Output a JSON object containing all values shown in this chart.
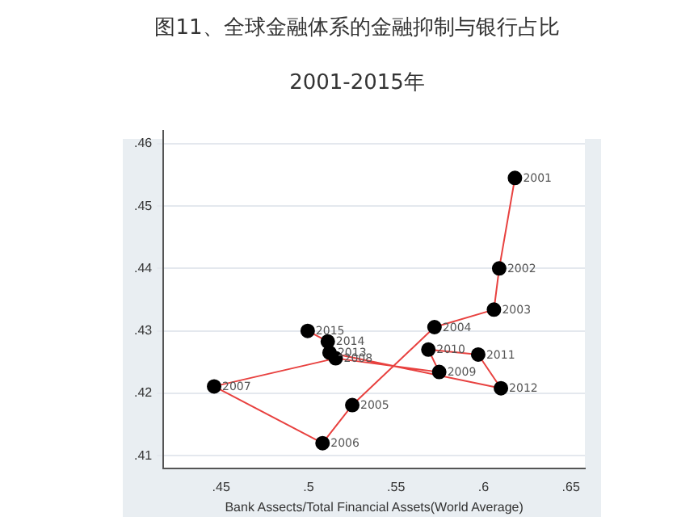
{
  "chart_data": {
    "type": "line",
    "title": "图11、全球金融体系的金融抑制与银行占比",
    "subtitle": "2001-2015年",
    "xlabel": "Bank Assects/Total Financial Assets(World Average)",
    "series": [
      {
        "color": "#e8413f",
        "x": [
          0.618,
          0.609,
          0.606,
          0.572,
          0.525,
          0.508,
          0.446,
          0.5155,
          0.5747,
          0.5685,
          0.597,
          0.61,
          0.512,
          0.511,
          0.4995
        ],
        "values": [
          0.4545,
          0.44,
          0.4334,
          0.4306,
          0.4181,
          0.412,
          0.4211,
          0.4256,
          0.4234,
          0.427,
          0.4262,
          0.4208,
          0.4265,
          0.4283,
          0.43
        ]
      }
    ],
    "annotations": [
      {
        "text": "2001",
        "x": 0.618,
        "y": 0.4545
      },
      {
        "text": "2002",
        "x": 0.609,
        "y": 0.44
      },
      {
        "text": "2003",
        "x": 0.606,
        "y": 0.4334
      },
      {
        "text": "2004",
        "x": 0.572,
        "y": 0.4306
      },
      {
        "text": "2005",
        "x": 0.525,
        "y": 0.4181
      },
      {
        "text": "2006",
        "x": 0.508,
        "y": 0.412
      },
      {
        "text": "2007",
        "x": 0.446,
        "y": 0.4211
      },
      {
        "text": "2008",
        "x": 0.5155,
        "y": 0.4256
      },
      {
        "text": "2009",
        "x": 0.5747,
        "y": 0.4234
      },
      {
        "text": "2010",
        "x": 0.5685,
        "y": 0.427
      },
      {
        "text": "2011",
        "x": 0.597,
        "y": 0.4262
      },
      {
        "text": "2012",
        "x": 0.61,
        "y": 0.4208
      },
      {
        "text": "2013",
        "x": 0.512,
        "y": 0.4265
      },
      {
        "text": "2014",
        "x": 0.511,
        "y": 0.4283
      },
      {
        "text": "2015",
        "x": 0.4995,
        "y": 0.43
      }
    ],
    "marker": "circle",
    "line_style": "solid",
    "xlim": [
      0.417,
      0.658
    ],
    "xticks": [
      {
        "value": 0.45,
        "label": ".45"
      },
      {
        "value": 0.5,
        "label": ".5"
      },
      {
        "value": 0.55,
        "label": ".55"
      },
      {
        "value": 0.6,
        "label": ".6"
      },
      {
        "value": 0.65,
        "label": ".65"
      }
    ],
    "ylim": [
      0.408,
      0.462
    ],
    "yticks": [
      {
        "value": 0.41,
        "label": ".41"
      },
      {
        "value": 0.42,
        "label": ".42"
      },
      {
        "value": 0.43,
        "label": ".43"
      },
      {
        "value": 0.44,
        "label": ".44"
      },
      {
        "value": 0.45,
        "label": ".45"
      },
      {
        "value": 0.46,
        "label": ".46"
      }
    ],
    "grid": "y",
    "legend": false
  }
}
